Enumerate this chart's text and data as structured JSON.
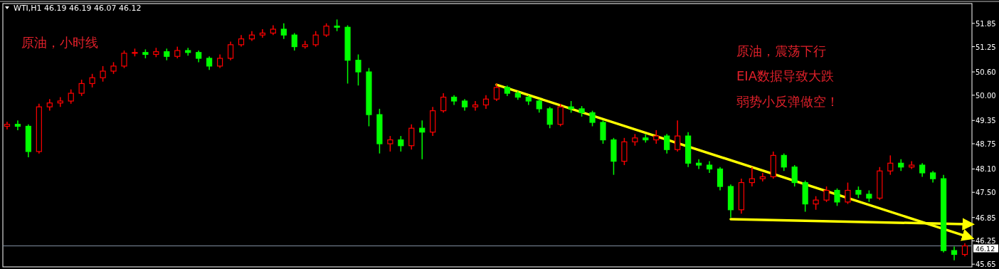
{
  "chart_data": {
    "type": "candlestick",
    "title": "WTI,H1  46.19 46.19 46.07 46.12",
    "categories": [
      null,
      null,
      null,
      null,
      null,
      null,
      null,
      null,
      null,
      null,
      null,
      null,
      null,
      null,
      null,
      null,
      null,
      null,
      null,
      null,
      null,
      null,
      null,
      null,
      null,
      null,
      null,
      null,
      null,
      null,
      null,
      null,
      null,
      null,
      null,
      null,
      null,
      null,
      null,
      null,
      null,
      null,
      null,
      null,
      null,
      null,
      null,
      null,
      null,
      null,
      null,
      null,
      null,
      null,
      null,
      null,
      null,
      null,
      null,
      null,
      null,
      null,
      null,
      null,
      null,
      null,
      null,
      null,
      null,
      null,
      null,
      null,
      null,
      null,
      null,
      null,
      null,
      null,
      null,
      null,
      null,
      null,
      null,
      null,
      null,
      null,
      null,
      null,
      null,
      null,
      null
    ],
    "ohlc": [
      [
        49.2,
        49.32,
        49.12,
        49.25
      ],
      [
        49.25,
        49.35,
        49.1,
        49.2
      ],
      [
        49.2,
        49.25,
        48.4,
        48.55
      ],
      [
        48.55,
        49.78,
        48.5,
        49.7
      ],
      [
        49.7,
        49.9,
        49.6,
        49.8
      ],
      [
        49.8,
        49.95,
        49.7,
        49.85
      ],
      [
        49.85,
        50.15,
        49.78,
        50.05
      ],
      [
        50.05,
        50.4,
        49.98,
        50.3
      ],
      [
        50.3,
        50.55,
        50.2,
        50.45
      ],
      [
        50.45,
        50.75,
        50.35,
        50.62
      ],
      [
        50.62,
        50.85,
        50.55,
        50.75
      ],
      [
        50.75,
        51.15,
        50.7,
        51.08
      ],
      [
        51.08,
        51.2,
        51.0,
        51.1
      ],
      [
        51.1,
        51.18,
        50.95,
        51.05
      ],
      [
        51.05,
        51.22,
        50.98,
        51.12
      ],
      [
        51.12,
        51.2,
        50.9,
        51.0
      ],
      [
        51.0,
        51.25,
        50.95,
        51.15
      ],
      [
        51.15,
        51.22,
        51.02,
        51.1
      ],
      [
        51.1,
        51.15,
        50.85,
        50.95
      ],
      [
        50.95,
        51.0,
        50.65,
        50.75
      ],
      [
        50.75,
        51.05,
        50.7,
        50.95
      ],
      [
        50.95,
        51.38,
        50.9,
        51.3
      ],
      [
        51.3,
        51.55,
        51.25,
        51.45
      ],
      [
        51.45,
        51.65,
        51.4,
        51.55
      ],
      [
        51.55,
        51.7,
        51.48,
        51.6
      ],
      [
        51.6,
        51.8,
        51.55,
        51.7
      ],
      [
        51.7,
        51.85,
        51.45,
        51.55
      ],
      [
        51.55,
        51.6,
        51.15,
        51.25
      ],
      [
        51.25,
        51.4,
        51.2,
        51.3
      ],
      [
        51.3,
        51.65,
        51.25,
        51.55
      ],
      [
        51.55,
        51.85,
        51.5,
        51.78
      ],
      [
        51.78,
        51.95,
        51.65,
        51.75
      ],
      [
        51.75,
        51.8,
        50.3,
        50.9
      ],
      [
        50.9,
        51.05,
        50.25,
        50.6
      ],
      [
        50.6,
        50.7,
        49.2,
        49.5
      ],
      [
        49.5,
        49.65,
        48.5,
        48.75
      ],
      [
        48.75,
        48.95,
        48.55,
        48.85
      ],
      [
        48.85,
        48.95,
        48.55,
        48.7
      ],
      [
        48.7,
        49.25,
        48.6,
        49.15
      ],
      [
        49.15,
        49.35,
        48.35,
        49.05
      ],
      [
        49.05,
        49.7,
        48.95,
        49.6
      ],
      [
        49.6,
        50.05,
        49.55,
        49.95
      ],
      [
        49.95,
        50.0,
        49.75,
        49.85
      ],
      [
        49.85,
        49.9,
        49.6,
        49.7
      ],
      [
        49.7,
        49.85,
        49.6,
        49.75
      ],
      [
        49.75,
        50.0,
        49.65,
        49.9
      ],
      [
        49.9,
        50.3,
        49.85,
        50.2
      ],
      [
        50.2,
        50.25,
        49.98,
        50.05
      ],
      [
        50.05,
        50.1,
        49.88,
        49.95
      ],
      [
        49.95,
        50.0,
        49.75,
        49.85
      ],
      [
        49.85,
        49.9,
        49.55,
        49.65
      ],
      [
        49.65,
        49.7,
        49.15,
        49.25
      ],
      [
        49.25,
        49.78,
        49.2,
        49.7
      ],
      [
        49.7,
        49.85,
        49.55,
        49.65
      ],
      [
        49.65,
        49.72,
        49.45,
        49.55
      ],
      [
        49.55,
        49.6,
        49.2,
        49.3
      ],
      [
        49.3,
        49.35,
        48.75,
        48.85
      ],
      [
        48.85,
        48.9,
        47.95,
        48.3
      ],
      [
        48.3,
        48.9,
        48.2,
        48.8
      ],
      [
        48.8,
        49.0,
        48.7,
        48.9
      ],
      [
        48.9,
        49.0,
        48.78,
        48.85
      ],
      [
        48.85,
        49.1,
        48.75,
        48.95
      ],
      [
        48.95,
        49.0,
        48.5,
        48.6
      ],
      [
        48.6,
        49.35,
        48.55,
        48.95
      ],
      [
        48.95,
        49.05,
        48.15,
        48.25
      ],
      [
        48.25,
        48.35,
        48.1,
        48.2
      ],
      [
        48.2,
        48.3,
        48.0,
        48.1
      ],
      [
        48.1,
        48.15,
        47.55,
        47.65
      ],
      [
        47.65,
        47.7,
        46.85,
        47.05
      ],
      [
        47.05,
        47.85,
        46.95,
        47.75
      ],
      [
        47.75,
        48.15,
        47.65,
        47.85
      ],
      [
        47.85,
        48.0,
        47.78,
        47.9
      ],
      [
        47.9,
        48.55,
        47.85,
        48.45
      ],
      [
        48.45,
        48.5,
        48.05,
        48.15
      ],
      [
        48.15,
        48.2,
        47.65,
        47.75
      ],
      [
        47.75,
        47.8,
        47.0,
        47.2
      ],
      [
        47.2,
        47.4,
        47.05,
        47.3
      ],
      [
        47.3,
        47.65,
        47.25,
        47.55
      ],
      [
        47.55,
        47.6,
        47.15,
        47.25
      ],
      [
        47.25,
        47.75,
        47.2,
        47.55
      ],
      [
        47.55,
        47.65,
        47.35,
        47.45
      ],
      [
        47.45,
        47.55,
        47.25,
        47.35
      ],
      [
        47.35,
        48.15,
        47.3,
        48.05
      ],
      [
        48.05,
        48.45,
        47.95,
        48.25
      ],
      [
        48.25,
        48.35,
        48.05,
        48.15
      ],
      [
        48.15,
        48.3,
        48.1,
        48.2
      ],
      [
        48.2,
        48.25,
        47.9,
        48.0
      ],
      [
        48.0,
        48.05,
        47.75,
        47.85
      ],
      [
        47.85,
        47.95,
        45.95,
        46.0
      ],
      [
        46.0,
        46.1,
        45.75,
        45.9
      ],
      [
        45.9,
        46.19,
        45.85,
        46.12
      ]
    ],
    "colors": [
      "#ff0000",
      "#00ff00",
      "#00ff00",
      "#ff0000",
      "#ff0000",
      "#ff0000",
      "#ff0000",
      "#ff0000",
      "#ff0000",
      "#ff0000",
      "#ff0000",
      "#ff0000",
      "#ff0000",
      "#00ff00",
      "#ff0000",
      "#00ff00",
      "#ff0000",
      "#00ff00",
      "#00ff00",
      "#00ff00",
      "#ff0000",
      "#ff0000",
      "#ff0000",
      "#ff0000",
      "#ff0000",
      "#ff0000",
      "#00ff00",
      "#00ff00",
      "#ff0000",
      "#ff0000",
      "#ff0000",
      "#00ff00",
      "#00ff00",
      "#00ff00",
      "#00ff00",
      "#00ff00",
      "#ff0000",
      "#00ff00",
      "#ff0000",
      "#00ff00",
      "#ff0000",
      "#ff0000",
      "#00ff00",
      "#00ff00",
      "#ff0000",
      "#ff0000",
      "#ff0000",
      "#00ff00",
      "#00ff00",
      "#00ff00",
      "#00ff00",
      "#00ff00",
      "#ff0000",
      "#00ff00",
      "#00ff00",
      "#00ff00",
      "#00ff00",
      "#00ff00",
      "#ff0000",
      "#ff0000",
      "#00ff00",
      "#ff0000",
      "#00ff00",
      "#ff0000",
      "#00ff00",
      "#00ff00",
      "#00ff00",
      "#00ff00",
      "#00ff00",
      "#ff0000",
      "#ff0000",
      "#ff0000",
      "#ff0000",
      "#00ff00",
      "#00ff00",
      "#00ff00",
      "#ff0000",
      "#ff0000",
      "#00ff00",
      "#ff0000",
      "#00ff00",
      "#00ff00",
      "#ff0000",
      "#ff0000",
      "#00ff00",
      "#ff0000",
      "#00ff00",
      "#00ff00",
      "#00ff00",
      "#00ff00",
      "#ff0000"
    ],
    "series": [
      {
        "type": "line",
        "color": "#ffff00",
        "values": [
          null,
          null,
          null,
          null,
          null,
          null,
          null,
          null,
          null,
          null,
          null,
          null,
          null,
          null,
          null,
          null,
          null,
          null,
          null,
          null,
          null,
          null,
          null,
          null,
          null,
          null,
          null,
          null,
          null,
          null,
          null,
          null,
          null,
          null,
          null,
          null,
          null,
          null,
          null,
          null,
          null,
          null,
          null,
          null,
          null,
          null,
          50.27,
          null,
          null,
          null,
          null,
          null,
          null,
          null,
          null,
          null,
          null,
          null,
          null,
          null,
          null,
          null,
          null,
          null,
          null,
          null,
          null,
          null,
          null,
          null,
          null,
          null,
          null,
          null,
          null,
          null,
          null,
          null,
          null,
          null,
          null,
          null,
          null,
          null,
          null,
          null,
          null,
          null,
          null,
          null,
          46.38
        ]
      },
      {
        "type": "line",
        "color": "#ffff00",
        "values": [
          null,
          null,
          null,
          null,
          null,
          null,
          null,
          null,
          null,
          null,
          null,
          null,
          null,
          null,
          null,
          null,
          null,
          null,
          null,
          null,
          null,
          null,
          null,
          null,
          null,
          null,
          null,
          null,
          null,
          null,
          null,
          null,
          null,
          null,
          null,
          null,
          null,
          null,
          null,
          null,
          null,
          null,
          null,
          null,
          null,
          null,
          null,
          null,
          null,
          null,
          null,
          null,
          null,
          null,
          null,
          null,
          null,
          null,
          null,
          null,
          null,
          null,
          null,
          null,
          null,
          null,
          null,
          null,
          46.81,
          null,
          null,
          null,
          null,
          null,
          null,
          null,
          null,
          null,
          null,
          null,
          null,
          null,
          null,
          null,
          null,
          null,
          null,
          null,
          null,
          null,
          46.68
        ]
      }
    ],
    "ylim": [
      45.58,
      52.36
    ],
    "yticks": [
      {
        "value": 45.65,
        "label": "45.65"
      },
      {
        "value": 46.25,
        "label": "46.25"
      },
      {
        "value": 46.85,
        "label": "46.85"
      },
      {
        "value": 47.5,
        "label": "47.50"
      },
      {
        "value": 48.1,
        "label": "48.10"
      },
      {
        "value": 48.75,
        "label": "48.75"
      },
      {
        "value": 49.35,
        "label": "49.35"
      },
      {
        "value": 50,
        "label": "50.00"
      },
      {
        "value": 50.6,
        "label": "50.60"
      },
      {
        "value": 51.25,
        "label": "51.25"
      },
      {
        "value": 51.85,
        "label": "51.85"
      }
    ],
    "ref_lines": [
      {
        "axis": "y",
        "value": 46.12,
        "label": "46.12",
        "color": "#8090a0"
      }
    ],
    "annotations": [
      "原油，小时线",
      "原油，震荡下行",
      "EIA数据导致大跌",
      "弱势小反弹做空！"
    ],
    "grid": false
  }
}
